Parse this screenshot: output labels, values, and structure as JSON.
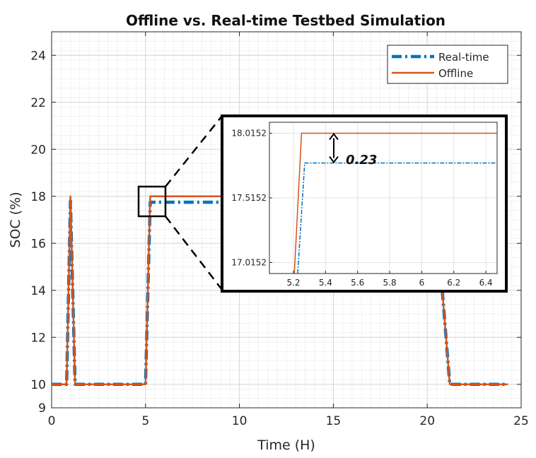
{
  "chart_data": {
    "type": "line",
    "title": "Offline vs. Real-time Testbed Simulation",
    "xlabel": "Time (H)",
    "ylabel": "SOC (%)",
    "xlim": [
      0,
      25
    ],
    "ylim": [
      9,
      25
    ],
    "xticks": [
      "0",
      "5",
      "10",
      "15",
      "20",
      "25"
    ],
    "yticks": [
      "9",
      "10",
      "12",
      "14",
      "16",
      "18",
      "20",
      "22",
      "24"
    ],
    "grid": "major and minor",
    "legend": {
      "position": "top-right",
      "entries": [
        "Real-time",
        "Offline"
      ]
    },
    "series": [
      {
        "name": "Real-time",
        "color": "#0072BD",
        "style": "dash-dot",
        "x": [
          0,
          0.8,
          1.0,
          1.25,
          5.0,
          5.25,
          6.0,
          9.0
        ],
        "y": [
          10,
          10,
          17.8,
          10,
          10,
          17.75,
          17.75,
          17.75
        ]
      },
      {
        "name": "Offline",
        "color": "#D95319",
        "style": "solid",
        "x": [
          0,
          0.8,
          1.0,
          1.25,
          5.0,
          5.25,
          6.0,
          9.0
        ],
        "y": [
          10,
          10,
          18.0,
          10,
          10,
          18.0,
          18.0,
          18.0
        ]
      },
      {
        "name": "Real-time",
        "color": "#0072BD",
        "style": "dash-dot",
        "x": [
          20.8,
          21.2,
          22.0,
          24.3
        ],
        "y": [
          14.0,
          10,
          10,
          10
        ]
      },
      {
        "name": "Offline",
        "color": "#D95319",
        "style": "solid",
        "x": [
          20.8,
          21.2,
          22.0,
          24.3
        ],
        "y": [
          14.0,
          10,
          10,
          10
        ]
      }
    ],
    "inset": {
      "xlim": [
        5.05,
        6.47
      ],
      "ylim": [
        16.93,
        18.1
      ],
      "xticks": [
        "5.2",
        "5.4",
        "5.6",
        "5.8",
        "6",
        "6.2",
        "6.4"
      ],
      "yticks": [
        "17.0152",
        "17.5152",
        "18.0152"
      ],
      "series": [
        {
          "name": "Offline",
          "color": "#D95319",
          "x": [
            5.2,
            5.25,
            6.47
          ],
          "y": [
            16.8,
            18.0152,
            18.0152
          ]
        },
        {
          "name": "Real-time",
          "color": "#0072BD",
          "x": [
            5.22,
            5.27,
            6.47
          ],
          "y": [
            16.8,
            17.7852,
            17.7852
          ]
        }
      ],
      "annotation": "0.23"
    }
  }
}
